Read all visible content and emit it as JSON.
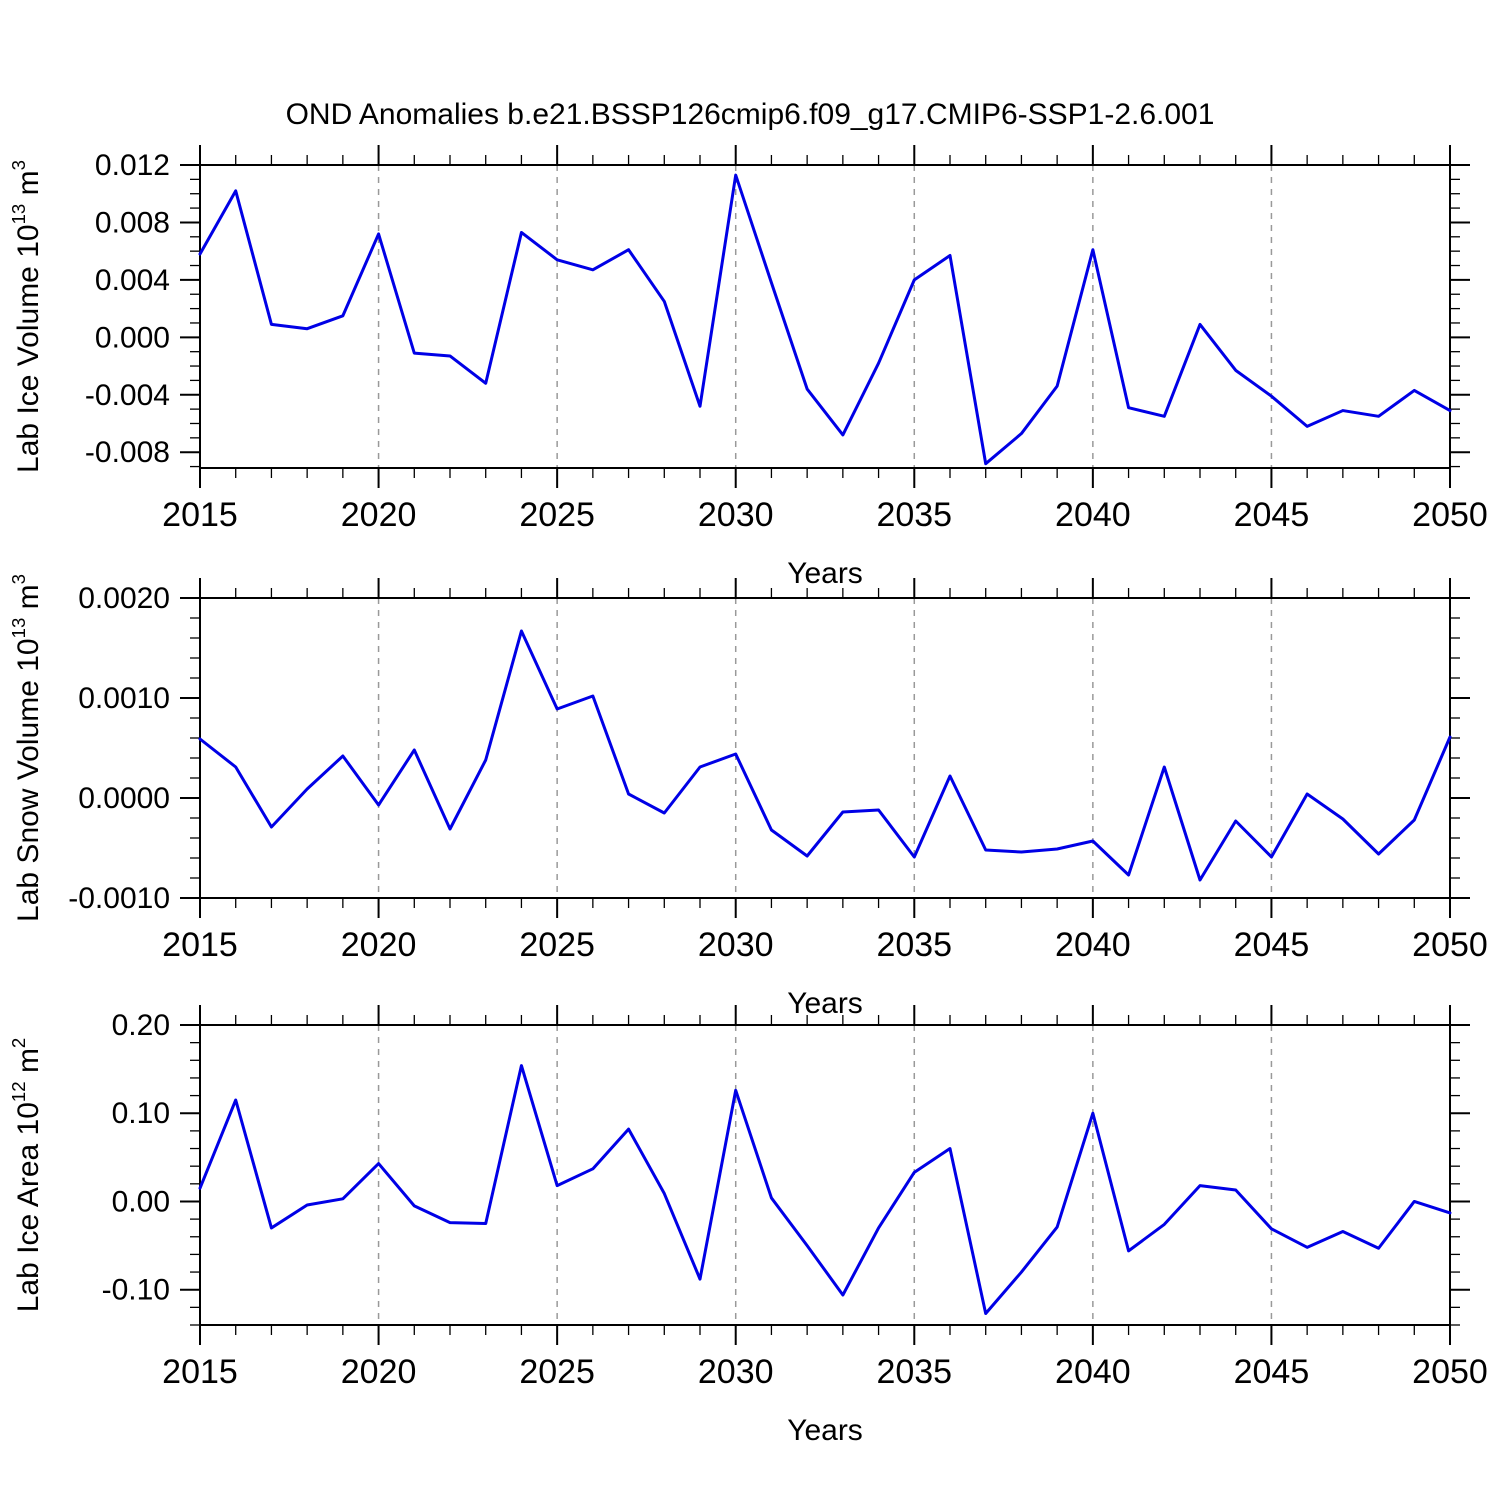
{
  "title": "OND Anomalies b.e21.BSSP126cmip6.f09_g17.CMIP6-SSP1-2.6.001",
  "style": {
    "line_color": "#0000e6",
    "grid_color": "#999999",
    "axis_color": "#000000",
    "background": "#ffffff"
  },
  "chart_data": [
    {
      "type": "line",
      "name": "lab-ice-volume",
      "ylabel": "Lab Ice Volume 10^13 m^3",
      "xlabel": "Years",
      "legend": null,
      "grid": "vertical-dashed",
      "xlim": [
        2015,
        2050
      ],
      "ylim": [
        -0.0091,
        0.012
      ],
      "xticks": [
        {
          "v": 2015,
          "label": "2015"
        },
        {
          "v": 2020,
          "label": "2020"
        },
        {
          "v": 2025,
          "label": "2025"
        },
        {
          "v": 2030,
          "label": "2030"
        },
        {
          "v": 2035,
          "label": "2035"
        },
        {
          "v": 2040,
          "label": "2040"
        },
        {
          "v": 2045,
          "label": "2045"
        },
        {
          "v": 2050,
          "label": "2050"
        }
      ],
      "x_minor_step": 1,
      "gridlines_x": [
        2020,
        2025,
        2030,
        2035,
        2040,
        2045
      ],
      "yticks": [
        {
          "v": 0.012,
          "label": "0.012"
        },
        {
          "v": 0.008,
          "label": "0.008"
        },
        {
          "v": 0.004,
          "label": "0.004"
        },
        {
          "v": 0.0,
          "label": "0.000"
        },
        {
          "v": -0.004,
          "label": "-0.004"
        },
        {
          "v": -0.008,
          "label": "-0.008"
        }
      ],
      "y_minor_step": 0.001,
      "x": [
        2015,
        2016,
        2017,
        2018,
        2019,
        2020,
        2021,
        2022,
        2023,
        2024,
        2025,
        2026,
        2027,
        2028,
        2029,
        2030,
        2031,
        2032,
        2033,
        2034,
        2035,
        2036,
        2037,
        2038,
        2039,
        2040,
        2041,
        2042,
        2043,
        2044,
        2045,
        2046,
        2047,
        2048,
        2049,
        2050
      ],
      "values": [
        0.0058,
        0.0102,
        0.0009,
        0.0006,
        0.0015,
        0.0072,
        -0.0011,
        -0.0013,
        -0.0032,
        0.0073,
        0.0054,
        0.0047,
        0.0061,
        0.0025,
        -0.0048,
        0.0113,
        0.0038,
        -0.0036,
        -0.0068,
        -0.0018,
        0.004,
        0.0057,
        -0.0088,
        -0.0067,
        -0.0034,
        0.0061,
        -0.0049,
        -0.0055,
        0.0009,
        -0.0023,
        -0.0041,
        -0.0062,
        -0.0051,
        -0.0055,
        -0.0037,
        -0.0051
      ]
    },
    {
      "type": "line",
      "name": "lab-snow-volume",
      "ylabel": "Lab Snow Volume 10^13 m^3",
      "xlabel": "Years",
      "legend": null,
      "grid": "vertical-dashed",
      "xlim": [
        2015,
        2050
      ],
      "ylim": [
        -0.001,
        0.002
      ],
      "xticks": [
        {
          "v": 2015,
          "label": "2015"
        },
        {
          "v": 2020,
          "label": "2020"
        },
        {
          "v": 2025,
          "label": "2025"
        },
        {
          "v": 2030,
          "label": "2030"
        },
        {
          "v": 2035,
          "label": "2035"
        },
        {
          "v": 2040,
          "label": "2040"
        },
        {
          "v": 2045,
          "label": "2045"
        },
        {
          "v": 2050,
          "label": "2050"
        }
      ],
      "x_minor_step": 1,
      "gridlines_x": [
        2020,
        2025,
        2030,
        2035,
        2040,
        2045
      ],
      "yticks": [
        {
          "v": 0.002,
          "label": "0.0020"
        },
        {
          "v": 0.001,
          "label": "0.0010"
        },
        {
          "v": 0.0,
          "label": "0.0000"
        },
        {
          "v": -0.001,
          "label": "-0.0010"
        }
      ],
      "y_minor_step": 0.0002,
      "x": [
        2015,
        2016,
        2017,
        2018,
        2019,
        2020,
        2021,
        2022,
        2023,
        2024,
        2025,
        2026,
        2027,
        2028,
        2029,
        2030,
        2031,
        2032,
        2033,
        2034,
        2035,
        2036,
        2037,
        2038,
        2039,
        2040,
        2041,
        2042,
        2043,
        2044,
        2045,
        2046,
        2047,
        2048,
        2049,
        2050
      ],
      "values": [
        0.00059,
        0.00031,
        -0.00029,
        9e-05,
        0.00042,
        -7e-05,
        0.00048,
        -0.00031,
        0.00038,
        0.00167,
        0.00089,
        0.00102,
        4e-05,
        -0.00015,
        0.00031,
        0.00044,
        -0.00032,
        -0.00058,
        -0.00014,
        -0.00012,
        -0.00059,
        0.00022,
        -0.00052,
        -0.00054,
        -0.00051,
        -0.00043,
        -0.00077,
        0.00031,
        -0.00082,
        -0.00023,
        -0.00059,
        4e-05,
        -0.00021,
        -0.00056,
        -0.00022,
        0.00061
      ]
    },
    {
      "type": "line",
      "name": "lab-ice-area",
      "ylabel": "Lab Ice Area 10^12 m^2",
      "xlabel": "Years",
      "legend": null,
      "grid": "vertical-dashed",
      "xlim": [
        2015,
        2050
      ],
      "ylim": [
        -0.14,
        0.2
      ],
      "xticks": [
        {
          "v": 2015,
          "label": "2015"
        },
        {
          "v": 2020,
          "label": "2020"
        },
        {
          "v": 2025,
          "label": "2025"
        },
        {
          "v": 2030,
          "label": "2030"
        },
        {
          "v": 2035,
          "label": "2035"
        },
        {
          "v": 2040,
          "label": "2040"
        },
        {
          "v": 2045,
          "label": "2045"
        },
        {
          "v": 2050,
          "label": "2050"
        }
      ],
      "x_minor_step": 1,
      "gridlines_x": [
        2020,
        2025,
        2030,
        2035,
        2040,
        2045
      ],
      "yticks": [
        {
          "v": 0.2,
          "label": "0.20"
        },
        {
          "v": 0.1,
          "label": "0.10"
        },
        {
          "v": 0.0,
          "label": "0.00"
        },
        {
          "v": -0.1,
          "label": "-0.10"
        }
      ],
      "y_minor_step": 0.02,
      "x": [
        2015,
        2016,
        2017,
        2018,
        2019,
        2020,
        2021,
        2022,
        2023,
        2024,
        2025,
        2026,
        2027,
        2028,
        2029,
        2030,
        2031,
        2032,
        2033,
        2034,
        2035,
        2036,
        2037,
        2038,
        2039,
        2040,
        2041,
        2042,
        2043,
        2044,
        2045,
        2046,
        2047,
        2048,
        2049,
        2050
      ],
      "values": [
        0.015,
        0.115,
        -0.03,
        -0.004,
        0.003,
        0.043,
        -0.005,
        -0.024,
        -0.025,
        0.154,
        0.018,
        0.037,
        0.082,
        0.009,
        -0.088,
        0.126,
        0.004,
        -0.05,
        -0.106,
        -0.03,
        0.033,
        0.06,
        -0.127,
        -0.08,
        -0.029,
        0.1,
        -0.056,
        -0.026,
        0.018,
        0.013,
        -0.031,
        -0.052,
        -0.034,
        -0.053,
        0.0,
        -0.013
      ]
    }
  ]
}
